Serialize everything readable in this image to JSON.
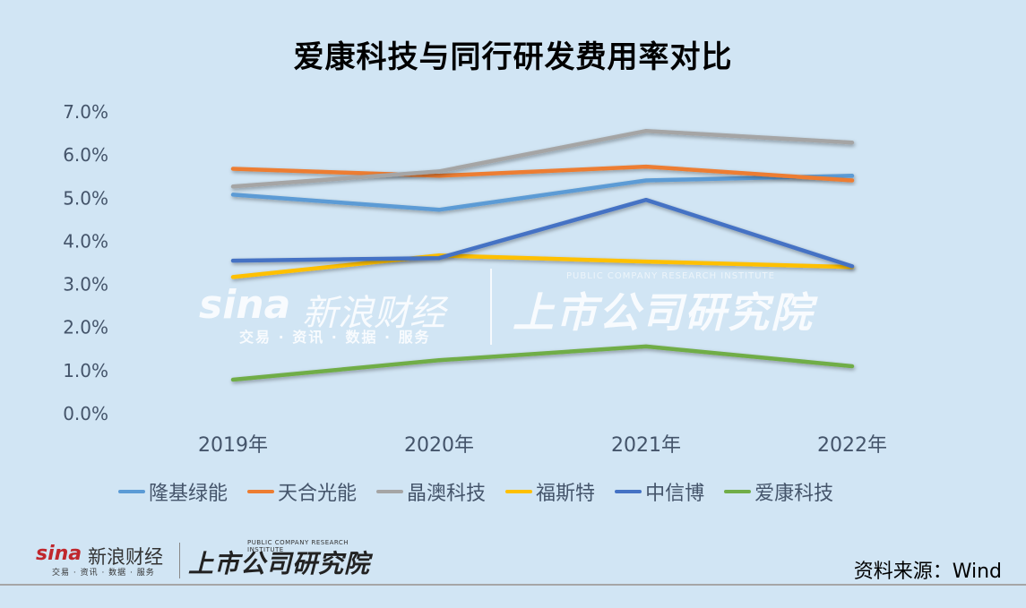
{
  "title": "爱康科技与同行研发费用率对比",
  "source": "资料来源：Wind",
  "watermark": {
    "brand": "sina",
    "brand_cn": "新浪财经",
    "brand_sub": "交易 · 资讯 · 数据 · 服务",
    "institute": "上市公司研究院",
    "institute_en": "PUBLIC COMPANY RESEARCH INSTITUTE"
  },
  "colors": {
    "background": "#d1e5f4",
    "隆基绿能": "#5b9bd5",
    "天合光能": "#ed7d31",
    "晶澳科技": "#a5a5a5",
    "福斯特": "#ffc000",
    "中信博": "#4472c4",
    "爱康科技": "#70ad47"
  },
  "chart_data": {
    "type": "line",
    "title": "爱康科技与同行研发费用率对比",
    "xlabel": "",
    "ylabel": "",
    "categories": [
      "2019年",
      "2020年",
      "2021年",
      "2022年"
    ],
    "yticks": [
      "0.0%",
      "1.0%",
      "2.0%",
      "3.0%",
      "4.0%",
      "5.0%",
      "6.0%",
      "7.0%"
    ],
    "ylim": [
      0,
      7
    ],
    "grid": false,
    "legend_position": "bottom",
    "series": [
      {
        "name": "隆基绿能",
        "color": "#5b9bd5",
        "values": [
          5.08,
          4.73,
          5.41,
          5.52
        ]
      },
      {
        "name": "天合光能",
        "color": "#ed7d31",
        "values": [
          5.68,
          5.52,
          5.73,
          5.41
        ]
      },
      {
        "name": "晶澳科技",
        "color": "#a5a5a5",
        "values": [
          5.27,
          5.62,
          6.56,
          6.29
        ]
      },
      {
        "name": "福斯特",
        "color": "#ffc000",
        "values": [
          3.17,
          3.67,
          3.53,
          3.4
        ]
      },
      {
        "name": "中信博",
        "color": "#4472c4",
        "values": [
          3.55,
          3.61,
          4.96,
          3.42
        ]
      },
      {
        "name": "爱康科技",
        "color": "#70ad47",
        "values": [
          0.79,
          1.24,
          1.56,
          1.1
        ]
      }
    ]
  }
}
